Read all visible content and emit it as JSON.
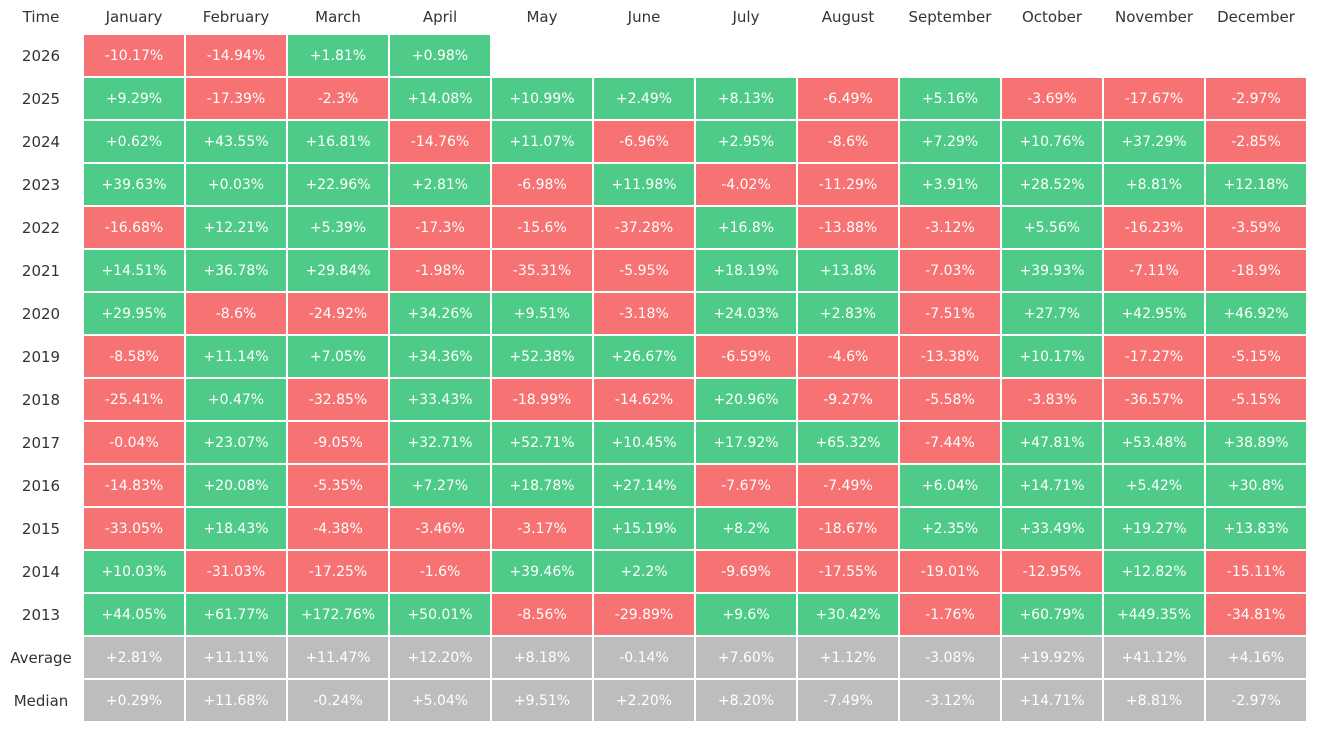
{
  "table": {
    "header": [
      "Time",
      "January",
      "February",
      "March",
      "April",
      "May",
      "June",
      "July",
      "August",
      "September",
      "October",
      "November",
      "December"
    ],
    "rows": [
      [
        "2026",
        "-10.17%",
        "-14.94%",
        "+1.81%",
        "+0.98%"
      ],
      [
        "2025",
        "+9.29%",
        "-17.39%",
        "-2.3%",
        "+14.08%",
        "+10.99%",
        "+2.49%",
        "+8.13%",
        "-6.49%",
        "+5.16%",
        "-3.69%",
        "-17.67%",
        "-2.97%"
      ],
      [
        "2024",
        "+0.62%",
        "+43.55%",
        "+16.81%",
        "-14.76%",
        "+11.07%",
        "-6.96%",
        "+2.95%",
        "-8.6%",
        "+7.29%",
        "+10.76%",
        "+37.29%",
        "-2.85%"
      ],
      [
        "2023",
        "+39.63%",
        "+0.03%",
        "+22.96%",
        "+2.81%",
        "-6.98%",
        "+11.98%",
        "-4.02%",
        "-11.29%",
        "+3.91%",
        "+28.52%",
        "+8.81%",
        "+12.18%"
      ],
      [
        "2022",
        "-16.68%",
        "+12.21%",
        "+5.39%",
        "-17.3%",
        "-15.6%",
        "-37.28%",
        "+16.8%",
        "-13.88%",
        "-3.12%",
        "+5.56%",
        "-16.23%",
        "-3.59%"
      ],
      [
        "2021",
        "+14.51%",
        "+36.78%",
        "+29.84%",
        "-1.98%",
        "-35.31%",
        "-5.95%",
        "+18.19%",
        "+13.8%",
        "-7.03%",
        "+39.93%",
        "-7.11%",
        "-18.9%"
      ],
      [
        "2020",
        "+29.95%",
        "-8.6%",
        "-24.92%",
        "+34.26%",
        "+9.51%",
        "-3.18%",
        "+24.03%",
        "+2.83%",
        "-7.51%",
        "+27.7%",
        "+42.95%",
        "+46.92%"
      ],
      [
        "2019",
        "-8.58%",
        "+11.14%",
        "+7.05%",
        "+34.36%",
        "+52.38%",
        "+26.67%",
        "-6.59%",
        "-4.6%",
        "-13.38%",
        "+10.17%",
        "-17.27%",
        "-5.15%"
      ],
      [
        "2018",
        "-25.41%",
        "+0.47%",
        "-32.85%",
        "+33.43%",
        "-18.99%",
        "-14.62%",
        "+20.96%",
        "-9.27%",
        "-5.58%",
        "-3.83%",
        "-36.57%",
        "-5.15%"
      ],
      [
        "2017",
        "-0.04%",
        "+23.07%",
        "-9.05%",
        "+32.71%",
        "+52.71%",
        "+10.45%",
        "+17.92%",
        "+65.32%",
        "-7.44%",
        "+47.81%",
        "+53.48%",
        "+38.89%"
      ],
      [
        "2016",
        "-14.83%",
        "+20.08%",
        "-5.35%",
        "+7.27%",
        "+18.78%",
        "+27.14%",
        "-7.67%",
        "-7.49%",
        "+6.04%",
        "+14.71%",
        "+5.42%",
        "+30.8%"
      ],
      [
        "2015",
        "-33.05%",
        "+18.43%",
        "-4.38%",
        "-3.46%",
        "-3.17%",
        "+15.19%",
        "+8.2%",
        "-18.67%",
        "+2.35%",
        "+33.49%",
        "+19.27%",
        "+13.83%"
      ],
      [
        "2014",
        "+10.03%",
        "-31.03%",
        "-17.25%",
        "-1.6%",
        "+39.46%",
        "+2.2%",
        "-9.69%",
        "-17.55%",
        "-19.01%",
        "-12.95%",
        "+12.82%",
        "-15.11%"
      ],
      [
        "2013",
        "+44.05%",
        "+61.77%",
        "+172.76%",
        "+50.01%",
        "-8.56%",
        "-29.89%",
        "+9.6%",
        "+30.42%",
        "-1.76%",
        "+60.79%",
        "+449.35%",
        "-34.81%"
      ]
    ],
    "summary_rows": [
      [
        "Average",
        "+2.81%",
        "+11.11%",
        "+11.47%",
        "+12.20%",
        "+8.18%",
        "-0.14%",
        "+7.60%",
        "+1.12%",
        "-3.08%",
        "+19.92%",
        "+41.12%",
        "+4.16%"
      ],
      [
        "Median",
        "+0.29%",
        "+11.68%",
        "-0.24%",
        "+5.04%",
        "+9.51%",
        "+2.20%",
        "+8.20%",
        "-7.49%",
        "-3.12%",
        "+14.71%",
        "+8.81%",
        "-2.97%"
      ]
    ]
  }
}
